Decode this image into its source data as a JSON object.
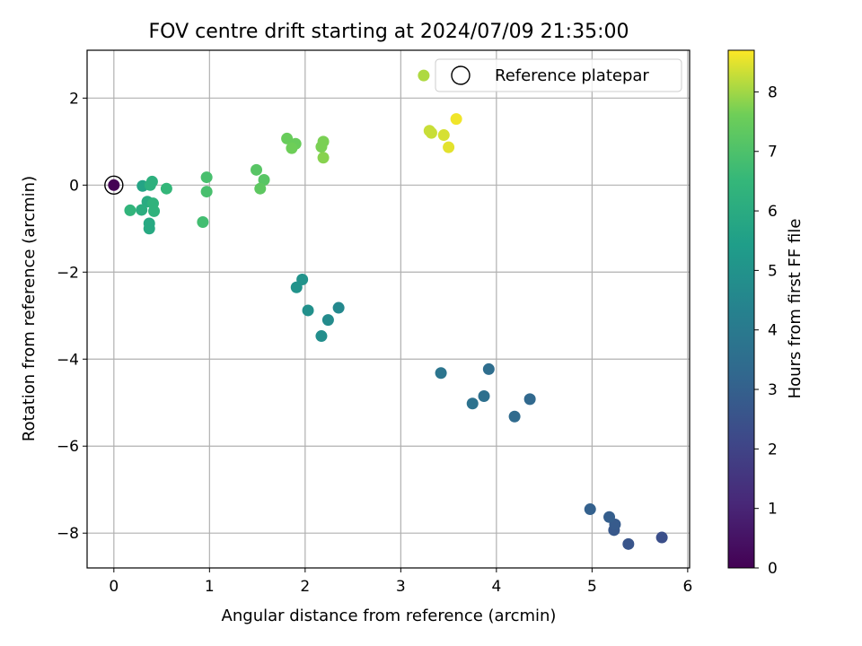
{
  "chart_data": {
    "type": "scatter",
    "title": "FOV centre drift starting at 2024/07/09 21:35:00",
    "xlabel": "Angular distance from reference (arcmin)",
    "ylabel": "Rotation from reference (arcmin)",
    "xlim": [
      -0.28,
      6.02
    ],
    "ylim": [
      -8.8,
      3.1
    ],
    "xticks": [
      0,
      1,
      2,
      3,
      4,
      5,
      6
    ],
    "yticks": [
      2,
      0,
      -2,
      -4,
      -6,
      -8
    ],
    "xtick_labels": [
      "0",
      "1",
      "2",
      "3",
      "4",
      "5",
      "6"
    ],
    "ytick_labels": [
      "2",
      "0",
      "−2",
      "−4",
      "−6",
      "−8"
    ],
    "grid": true,
    "legend": {
      "position": "top-right",
      "entries": [
        "Reference platepar"
      ]
    },
    "reference_point": {
      "x": 0,
      "y": 0
    },
    "colorbar": {
      "label": "Hours from first FF file",
      "range": [
        0,
        8.7
      ],
      "ticks": [
        0,
        1,
        2,
        3,
        4,
        5,
        6,
        7,
        8
      ],
      "tick_labels": [
        "0",
        "1",
        "2",
        "3",
        "4",
        "5",
        "6",
        "7",
        "8"
      ],
      "colormap": "viridis"
    },
    "points": [
      {
        "x": 0.0,
        "y": 0.0,
        "c": 0.0
      },
      {
        "x": 5.73,
        "y": -8.1,
        "c": 2.4
      },
      {
        "x": 5.38,
        "y": -8.25,
        "c": 2.6
      },
      {
        "x": 5.23,
        "y": -7.93,
        "c": 2.7
      },
      {
        "x": 5.24,
        "y": -7.8,
        "c": 2.8
      },
      {
        "x": 5.18,
        "y": -7.63,
        "c": 2.9
      },
      {
        "x": 4.98,
        "y": -7.45,
        "c": 3.0
      },
      {
        "x": 4.35,
        "y": -4.92,
        "c": 3.3
      },
      {
        "x": 4.19,
        "y": -5.32,
        "c": 3.4
      },
      {
        "x": 3.92,
        "y": -4.23,
        "c": 3.5
      },
      {
        "x": 3.87,
        "y": -4.85,
        "c": 3.6
      },
      {
        "x": 3.75,
        "y": -5.02,
        "c": 3.7
      },
      {
        "x": 3.42,
        "y": -4.32,
        "c": 3.8
      },
      {
        "x": 2.35,
        "y": -2.82,
        "c": 4.6
      },
      {
        "x": 2.24,
        "y": -3.1,
        "c": 4.7
      },
      {
        "x": 2.17,
        "y": -3.47,
        "c": 4.8
      },
      {
        "x": 2.03,
        "y": -2.88,
        "c": 4.9
      },
      {
        "x": 1.97,
        "y": -2.17,
        "c": 5.0
      },
      {
        "x": 1.91,
        "y": -2.35,
        "c": 5.0
      },
      {
        "x": 0.3,
        "y": -0.02,
        "c": 5.7
      },
      {
        "x": 0.37,
        "y": -1.0,
        "c": 5.9
      },
      {
        "x": 0.37,
        "y": -0.88,
        "c": 5.9
      },
      {
        "x": 0.35,
        "y": -0.38,
        "c": 6.0
      },
      {
        "x": 0.29,
        "y": -0.57,
        "c": 6.1
      },
      {
        "x": 0.4,
        "y": 0.08,
        "c": 6.2
      },
      {
        "x": 0.38,
        "y": 0.0,
        "c": 6.2
      },
      {
        "x": 0.41,
        "y": -0.42,
        "c": 6.3
      },
      {
        "x": 0.42,
        "y": -0.6,
        "c": 6.3
      },
      {
        "x": 0.17,
        "y": -0.58,
        "c": 6.4
      },
      {
        "x": 0.55,
        "y": -0.08,
        "c": 6.5
      },
      {
        "x": 0.93,
        "y": -0.85,
        "c": 6.8
      },
      {
        "x": 0.97,
        "y": -0.15,
        "c": 6.9
      },
      {
        "x": 0.97,
        "y": 0.18,
        "c": 6.9
      },
      {
        "x": 1.49,
        "y": 0.35,
        "c": 7.2
      },
      {
        "x": 1.57,
        "y": 0.12,
        "c": 7.2
      },
      {
        "x": 1.53,
        "y": -0.08,
        "c": 7.3
      },
      {
        "x": 1.81,
        "y": 1.07,
        "c": 7.5
      },
      {
        "x": 1.9,
        "y": 0.95,
        "c": 7.5
      },
      {
        "x": 1.86,
        "y": 0.85,
        "c": 7.6
      },
      {
        "x": 2.17,
        "y": 0.88,
        "c": 7.7
      },
      {
        "x": 2.19,
        "y": 1.0,
        "c": 7.7
      },
      {
        "x": 2.19,
        "y": 0.63,
        "c": 7.8
      },
      {
        "x": 3.24,
        "y": 2.52,
        "c": 8.1
      },
      {
        "x": 3.3,
        "y": 1.25,
        "c": 8.3
      },
      {
        "x": 3.32,
        "y": 1.2,
        "c": 8.3
      },
      {
        "x": 3.45,
        "y": 1.15,
        "c": 8.4
      },
      {
        "x": 3.5,
        "y": 0.87,
        "c": 8.5
      },
      {
        "x": 3.58,
        "y": 1.52,
        "c": 8.6
      }
    ]
  }
}
